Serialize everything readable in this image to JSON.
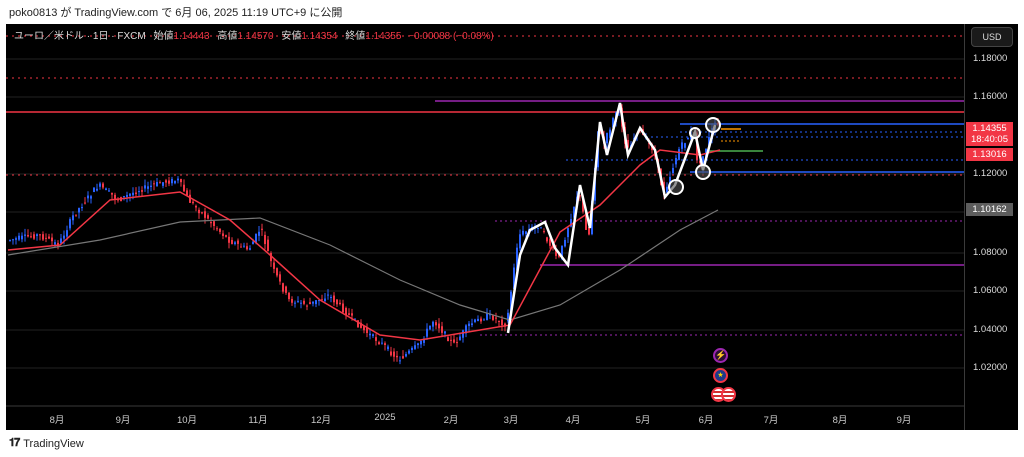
{
  "publish_line": "poko0813 が TradingView.com で 6月 06, 2025 11:19 UTC+9 に公開",
  "legend": {
    "symbol": "ユーロ／米ドル · 1日 · FXCM",
    "open_label": "始値",
    "open": "1.14443",
    "high_label": "高値",
    "high": "1.14570",
    "low_label": "安値",
    "low": "1.14354",
    "close_label": "終値",
    "close": "1.14355",
    "change": "−0.00088 (−0.08%)"
  },
  "price_axis": {
    "currency_button": "USD",
    "ticks": [
      "1.18000",
      "1.16000",
      "1.12000",
      "1.08000",
      "1.06000",
      "1.04000",
      "1.02000"
    ],
    "last_price": "1.14355",
    "countdown": "18:40:05",
    "ma_fast_value": "1.13016",
    "ma_slow_value": "1.10162"
  },
  "time_axis": [
    "8月",
    "9月",
    "10月",
    "11月",
    "12月",
    "2025",
    "2月",
    "3月",
    "4月",
    "5月",
    "6月",
    "7月",
    "8月",
    "9月"
  ],
  "colors": {
    "up": "#2962ff",
    "down": "#f23645",
    "ma_fast": "#f23645",
    "ma_slow": "#777777",
    "zigzag": "#ffffff"
  },
  "events": [
    "dividend-icon",
    "eu-flag-icon",
    "us-flag-icon"
  ],
  "footer": {
    "brand": "TradingView"
  }
}
